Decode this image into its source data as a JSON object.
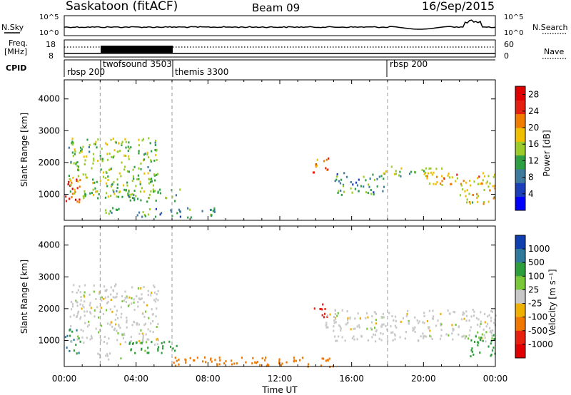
{
  "header": {
    "station": "Saskatoon (fitACF)",
    "beam": "Beam 09",
    "date": "16/Sep/2015"
  },
  "status_panel": {
    "nsky_label": "N.Sky",
    "nsearch_label": "N.Search",
    "freq_label": "Freq.",
    "freq_unit": "[MHz]",
    "nave_label": "Nave",
    "cpid_label": "CPID",
    "noise_ticks_left": [
      "10^5",
      "10^0"
    ],
    "noise_ticks_right": [
      "10^5",
      "10^0"
    ],
    "freq_ticks": [
      "18",
      "8"
    ],
    "nave_ticks": [
      "60",
      "0"
    ],
    "cpid_segments": [
      {
        "label": "rbsp 200",
        "start_h": 0.0
      },
      {
        "label": "twofsound 3503",
        "start_h": 2.0
      },
      {
        "label": "themis 3300",
        "start_h": 6.0
      },
      {
        "label": "rbsp 200",
        "start_h": 18.0
      }
    ]
  },
  "chart_data": [
    {
      "type": "heatmap",
      "name": "power",
      "ylabel": "Slant Range [km]",
      "ylim": [
        180,
        4600
      ],
      "yticks": [
        1000,
        2000,
        3000,
        4000
      ],
      "xlim_hours": [
        0,
        24
      ],
      "colorbar": {
        "label": "Power [dB]",
        "ticks": [
          "4",
          "8",
          "12",
          "16",
          "20",
          "24",
          "28"
        ],
        "range": [
          0,
          30
        ],
        "colors": [
          "#0000ff",
          "#1a3fb8",
          "#3e7a9e",
          "#2ea043",
          "#9ccc2a",
          "#f0c000",
          "#f07d00",
          "#e52010",
          "#e00000"
        ]
      },
      "regions": [
        {
          "h0": 0.0,
          "h1": 0.9,
          "r0": 600,
          "r1": 1500,
          "level": 26
        },
        {
          "h0": 0.2,
          "h1": 5.2,
          "r0": 900,
          "r1": 2800,
          "level": 14
        },
        {
          "h0": 1.8,
          "h1": 3.2,
          "r0": 400,
          "r1": 650,
          "level": 10
        },
        {
          "h0": 3.3,
          "h1": 6.5,
          "r0": 800,
          "r1": 1200,
          "level": 12
        },
        {
          "h0": 4.0,
          "h1": 8.5,
          "r0": 300,
          "r1": 600,
          "level": 10
        },
        {
          "h0": 13.8,
          "h1": 14.8,
          "r0": 1700,
          "r1": 2200,
          "level": 24
        },
        {
          "h0": 15.0,
          "h1": 17.8,
          "r0": 1000,
          "r1": 1700,
          "level": 10
        },
        {
          "h0": 17.5,
          "h1": 21.0,
          "r0": 1600,
          "r1": 1900,
          "level": 14
        },
        {
          "h0": 20.0,
          "h1": 24.0,
          "r0": 1300,
          "r1": 1700,
          "level": 20
        },
        {
          "h0": 22.0,
          "h1": 24.0,
          "r0": 700,
          "r1": 1400,
          "level": 18
        }
      ]
    },
    {
      "type": "heatmap",
      "name": "velocity",
      "ylabel": "Slant Range [km]",
      "ylim": [
        180,
        4600
      ],
      "yticks": [
        1000,
        2000,
        3000,
        4000
      ],
      "xlim_hours": [
        0,
        24
      ],
      "colorbar": {
        "label": "Velocity [m s⁻¹]",
        "ticks": [
          "1000",
          "500",
          "100",
          "25",
          "-25",
          "-100",
          "-500",
          "-1000"
        ],
        "colors": [
          "#1040b0",
          "#2f7a9c",
          "#2e9e3c",
          "#78c83a",
          "#c8c8c8",
          "#f0b000",
          "#f07800",
          "#e82010",
          "#e00000"
        ]
      },
      "regions": [
        {
          "h0": 0.0,
          "h1": 0.9,
          "r0": 600,
          "r1": 1400,
          "value": 300
        },
        {
          "h0": 0.3,
          "h1": 5.2,
          "r0": 900,
          "r1": 2800,
          "value": 0
        },
        {
          "h0": 1.8,
          "h1": 3.2,
          "r0": 400,
          "r1": 650,
          "value": 0
        },
        {
          "h0": 3.5,
          "h1": 6.5,
          "r0": 600,
          "r1": 1000,
          "value": 80
        },
        {
          "h0": 6.0,
          "h1": 15.0,
          "r0": 200,
          "r1": 500,
          "value": -150
        },
        {
          "h0": 13.8,
          "h1": 14.6,
          "r0": 1700,
          "r1": 2200,
          "value": -400
        },
        {
          "h0": 14.5,
          "h1": 24.0,
          "r0": 1000,
          "r1": 2000,
          "value": 0
        },
        {
          "h0": 22.5,
          "h1": 24.0,
          "r0": 500,
          "r1": 1200,
          "value": 120
        }
      ]
    }
  ],
  "time_axis": {
    "labels": [
      "00:00",
      "04:00",
      "08:00",
      "12:00",
      "16:00",
      "20:00",
      "00:00"
    ],
    "title": "Time UT"
  }
}
